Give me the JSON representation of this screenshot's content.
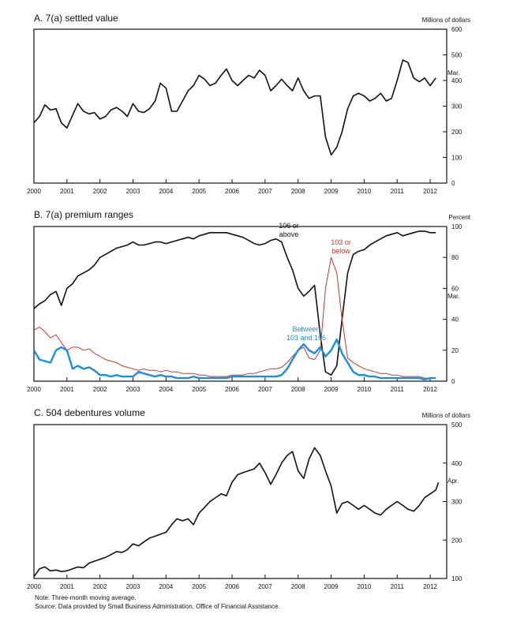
{
  "notes": {
    "note": "Note:  Three-month moving average.",
    "source": "Source:  Data provided by Small Business Administration, Office of Financial Assistance."
  },
  "chart_data": [
    {
      "type": "line",
      "title": "A. 7(a) settled value",
      "unit_label": "Millions of dollars",
      "end_label": "Mar.",
      "xlim": [
        2000,
        2012.5
      ],
      "ylim": [
        0,
        600
      ],
      "yticks": [
        0,
        100,
        200,
        300,
        400,
        500,
        600
      ],
      "xticks": [
        "2000",
        "2001",
        "2002",
        "2003",
        "2004",
        "2005",
        "2006",
        "2007",
        "2008",
        "2009",
        "2010",
        "2011",
        "2012"
      ],
      "series": [
        {
          "color": "#111111",
          "x": [
            2000.0,
            2000.17,
            2000.33,
            2000.5,
            2000.67,
            2000.83,
            2001.0,
            2001.17,
            2001.33,
            2001.5,
            2001.67,
            2001.83,
            2002.0,
            2002.17,
            2002.33,
            2002.5,
            2002.67,
            2002.83,
            2003.0,
            2003.17,
            2003.33,
            2003.5,
            2003.67,
            2003.83,
            2004.0,
            2004.17,
            2004.33,
            2004.5,
            2004.67,
            2004.83,
            2005.0,
            2005.17,
            2005.33,
            2005.5,
            2005.67,
            2005.83,
            2006.0,
            2006.17,
            2006.33,
            2006.5,
            2006.67,
            2006.83,
            2007.0,
            2007.17,
            2007.33,
            2007.5,
            2007.67,
            2007.83,
            2008.0,
            2008.17,
            2008.33,
            2008.5,
            2008.67,
            2008.83,
            2009.0,
            2009.17,
            2009.33,
            2009.5,
            2009.67,
            2009.83,
            2010.0,
            2010.17,
            2010.33,
            2010.5,
            2010.67,
            2010.83,
            2011.0,
            2011.17,
            2011.33,
            2011.5,
            2011.67,
            2011.83,
            2012.0,
            2012.17
          ],
          "y": [
            235,
            260,
            305,
            285,
            290,
            235,
            215,
            265,
            310,
            280,
            270,
            275,
            250,
            260,
            285,
            295,
            280,
            260,
            310,
            280,
            275,
            290,
            320,
            390,
            370,
            280,
            280,
            320,
            360,
            380,
            420,
            405,
            380,
            390,
            420,
            445,
            400,
            380,
            400,
            420,
            410,
            440,
            420,
            360,
            380,
            405,
            380,
            360,
            410,
            360,
            330,
            340,
            340,
            180,
            110,
            140,
            200,
            290,
            340,
            350,
            340,
            320,
            330,
            350,
            320,
            330,
            400,
            480,
            470,
            410,
            395,
            410,
            380,
            410
          ]
        }
      ]
    },
    {
      "type": "line",
      "title": "B. 7(a) premium ranges",
      "unit_label": "Percent",
      "end_label": "Mar.",
      "xlim": [
        2000,
        2012.5
      ],
      "ylim": [
        0,
        100
      ],
      "yticks": [
        0,
        20,
        40,
        60,
        80,
        100
      ],
      "xticks": [
        "2000",
        "2001",
        "2002",
        "2003",
        "2004",
        "2005",
        "2006",
        "2007",
        "2008",
        "2009",
        "2010",
        "2011",
        "2012"
      ],
      "annotations": [
        "106 or",
        "above",
        "103 or",
        "below",
        "Between",
        "103 and 106"
      ],
      "series": [
        {
          "name": "106 or above",
          "color": "#111111",
          "x": [
            2000.0,
            2000.17,
            2000.33,
            2000.5,
            2000.67,
            2000.83,
            2001.0,
            2001.17,
            2001.33,
            2001.5,
            2001.67,
            2001.83,
            2002.0,
            2002.17,
            2002.33,
            2002.5,
            2002.67,
            2002.83,
            2003.0,
            2003.17,
            2003.33,
            2003.5,
            2003.67,
            2003.83,
            2004.0,
            2004.17,
            2004.33,
            2004.5,
            2004.67,
            2004.83,
            2005.0,
            2005.17,
            2005.33,
            2005.5,
            2005.67,
            2005.83,
            2006.0,
            2006.17,
            2006.33,
            2006.5,
            2006.67,
            2006.83,
            2007.0,
            2007.17,
            2007.33,
            2007.5,
            2007.67,
            2007.83,
            2008.0,
            2008.17,
            2008.33,
            2008.5,
            2008.67,
            2008.83,
            2009.0,
            2009.17,
            2009.33,
            2009.5,
            2009.67,
            2009.83,
            2010.0,
            2010.17,
            2010.33,
            2010.5,
            2010.67,
            2010.83,
            2011.0,
            2011.17,
            2011.33,
            2011.5,
            2011.67,
            2011.83,
            2012.0,
            2012.17
          ],
          "y": [
            47,
            50,
            52,
            56,
            58,
            49,
            60,
            63,
            68,
            70,
            72,
            75,
            80,
            82,
            84,
            86,
            87,
            88,
            90,
            88,
            88,
            89,
            90,
            90,
            89,
            90,
            91,
            92,
            93,
            92,
            94,
            95,
            96,
            96,
            96,
            96,
            95,
            94,
            93,
            91,
            89,
            88,
            89,
            91,
            92,
            90,
            80,
            72,
            60,
            55,
            58,
            62,
            30,
            6,
            4,
            10,
            40,
            70,
            82,
            84,
            85,
            88,
            90,
            92,
            94,
            95,
            96,
            94,
            95,
            96,
            97,
            97,
            96,
            96
          ]
        },
        {
          "name": "103 or below",
          "color": "#c8352e",
          "x": [
            2000.0,
            2000.17,
            2000.33,
            2000.5,
            2000.67,
            2000.83,
            2001.0,
            2001.17,
            2001.33,
            2001.5,
            2001.67,
            2001.83,
            2002.0,
            2002.17,
            2002.33,
            2002.5,
            2002.67,
            2002.83,
            2003.0,
            2003.17,
            2003.33,
            2003.5,
            2003.67,
            2003.83,
            2004.0,
            2004.17,
            2004.33,
            2004.5,
            2004.67,
            2004.83,
            2005.0,
            2005.17,
            2005.33,
            2005.5,
            2005.67,
            2005.83,
            2006.0,
            2006.17,
            2006.33,
            2006.5,
            2006.67,
            2006.83,
            2007.0,
            2007.17,
            2007.33,
            2007.5,
            2007.67,
            2007.83,
            2008.0,
            2008.17,
            2008.33,
            2008.5,
            2008.67,
            2008.83,
            2009.0,
            2009.17,
            2009.33,
            2009.5,
            2009.67,
            2009.83,
            2010.0,
            2010.17,
            2010.33,
            2010.5,
            2010.67,
            2010.83,
            2011.0,
            2011.17,
            2011.33,
            2011.5,
            2011.67,
            2011.83,
            2012.0,
            2012.17
          ],
          "y": [
            33,
            35,
            32,
            28,
            30,
            25,
            20,
            22,
            22,
            20,
            21,
            18,
            16,
            14,
            13,
            12,
            10,
            9,
            8,
            7,
            8,
            7,
            7,
            6,
            7,
            6,
            6,
            5,
            5,
            5,
            4,
            4,
            3,
            3,
            3,
            3,
            4,
            4,
            4,
            5,
            5,
            6,
            7,
            8,
            8,
            9,
            12,
            16,
            20,
            22,
            15,
            14,
            20,
            60,
            80,
            70,
            40,
            15,
            12,
            10,
            8,
            7,
            6,
            5,
            5,
            4,
            4,
            3,
            3,
            3,
            3,
            2,
            2,
            2
          ]
        },
        {
          "name": "Between 103 and 106",
          "color": "#1a8fe0",
          "x": [
            2000.0,
            2000.17,
            2000.33,
            2000.5,
            2000.67,
            2000.83,
            2001.0,
            2001.17,
            2001.33,
            2001.5,
            2001.67,
            2001.83,
            2002.0,
            2002.17,
            2002.33,
            2002.5,
            2002.67,
            2002.83,
            2003.0,
            2003.17,
            2003.33,
            2003.5,
            2003.67,
            2003.83,
            2004.0,
            2004.17,
            2004.33,
            2004.5,
            2004.67,
            2004.83,
            2005.0,
            2005.17,
            2005.33,
            2005.5,
            2005.67,
            2005.83,
            2006.0,
            2006.17,
            2006.33,
            2006.5,
            2006.67,
            2006.83,
            2007.0,
            2007.17,
            2007.33,
            2007.5,
            2007.67,
            2007.83,
            2008.0,
            2008.17,
            2008.33,
            2008.5,
            2008.67,
            2008.83,
            2009.0,
            2009.17,
            2009.33,
            2009.5,
            2009.67,
            2009.83,
            2010.0,
            2010.17,
            2010.33,
            2010.5,
            2010.67,
            2010.83,
            2011.0,
            2011.17,
            2011.33,
            2011.5,
            2011.67,
            2011.83,
            2012.0,
            2012.17
          ],
          "y": [
            20,
            14,
            13,
            12,
            20,
            22,
            20,
            8,
            10,
            8,
            9,
            7,
            4,
            4,
            3,
            4,
            3,
            3,
            3,
            6,
            5,
            4,
            3,
            4,
            3,
            3,
            2,
            2,
            2,
            3,
            2,
            2,
            2,
            2,
            2,
            2,
            3,
            3,
            3,
            3,
            3,
            3,
            3,
            3,
            3,
            4,
            8,
            14,
            20,
            24,
            20,
            18,
            22,
            16,
            20,
            27,
            18,
            12,
            6,
            4,
            4,
            3,
            3,
            2,
            2,
            2,
            2,
            2,
            2,
            2,
            2,
            1,
            2,
            2
          ]
        }
      ]
    },
    {
      "type": "line",
      "title": "C. 504 debentures volume",
      "unit_label": "Millions of dollars",
      "end_label": "Apr.",
      "xlim": [
        2000,
        2012.5
      ],
      "ylim": [
        100,
        500
      ],
      "yticks": [
        100,
        200,
        300,
        400,
        500
      ],
      "xticks": [
        "2000",
        "2001",
        "2002",
        "2003",
        "2004",
        "2005",
        "2006",
        "2007",
        "2008",
        "2009",
        "2010",
        "2011",
        "2012"
      ],
      "series": [
        {
          "color": "#111111",
          "x": [
            2000.0,
            2000.17,
            2000.33,
            2000.5,
            2000.67,
            2000.83,
            2001.0,
            2001.17,
            2001.33,
            2001.5,
            2001.67,
            2001.83,
            2002.0,
            2002.17,
            2002.33,
            2002.5,
            2002.67,
            2002.83,
            2003.0,
            2003.17,
            2003.33,
            2003.5,
            2003.67,
            2003.83,
            2004.0,
            2004.17,
            2004.33,
            2004.5,
            2004.67,
            2004.83,
            2005.0,
            2005.17,
            2005.33,
            2005.5,
            2005.67,
            2005.83,
            2006.0,
            2006.17,
            2006.33,
            2006.5,
            2006.67,
            2006.83,
            2007.0,
            2007.17,
            2007.33,
            2007.5,
            2007.67,
            2007.83,
            2008.0,
            2008.17,
            2008.33,
            2008.5,
            2008.67,
            2008.83,
            2009.0,
            2009.17,
            2009.33,
            2009.5,
            2009.67,
            2009.83,
            2010.0,
            2010.17,
            2010.33,
            2010.5,
            2010.67,
            2010.83,
            2011.0,
            2011.17,
            2011.33,
            2011.5,
            2011.67,
            2011.83,
            2012.0,
            2012.17,
            2012.25
          ],
          "y": [
            105,
            125,
            130,
            120,
            122,
            118,
            120,
            125,
            130,
            128,
            140,
            145,
            150,
            155,
            162,
            170,
            168,
            175,
            190,
            185,
            195,
            205,
            210,
            215,
            220,
            240,
            255,
            250,
            255,
            240,
            270,
            285,
            300,
            310,
            320,
            315,
            350,
            370,
            375,
            380,
            385,
            400,
            375,
            345,
            370,
            400,
            420,
            430,
            380,
            360,
            410,
            440,
            420,
            380,
            340,
            270,
            295,
            300,
            290,
            280,
            290,
            280,
            270,
            265,
            280,
            290,
            300,
            290,
            280,
            275,
            290,
            310,
            320,
            330,
            350
          ]
        }
      ]
    }
  ]
}
